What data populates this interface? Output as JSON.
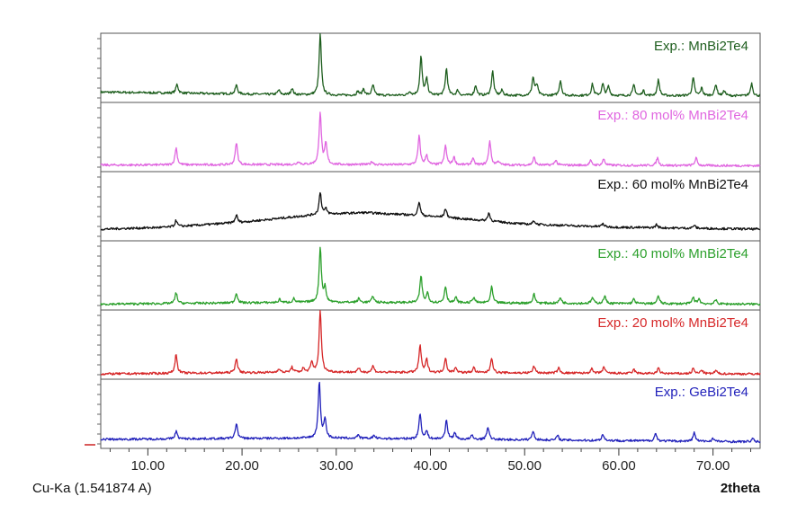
{
  "chart_data": {
    "type": "line",
    "xlabel": "2theta",
    "source_label": "Cu-Ka (1.541874 A)",
    "xlim": [
      5,
      75
    ],
    "x_ticks": [
      "10.00",
      "20.00",
      "30.00",
      "40.00",
      "50.00",
      "60.00",
      "70.00"
    ],
    "x_tick_values": [
      10,
      20,
      30,
      40,
      50,
      60,
      70
    ],
    "grid": false,
    "legend_placement": "top-right of each panel",
    "series": [
      {
        "name": "Exp.: MnBi2Te4",
        "color": "#1e5e1e",
        "baseline": [
          [
            5,
            0.12
          ],
          [
            30,
            0.07
          ],
          [
            75,
            0.06
          ]
        ],
        "peaks": [
          [
            13.1,
            0.14
          ],
          [
            19.4,
            0.14
          ],
          [
            23.9,
            0.07
          ],
          [
            25.3,
            0.1
          ],
          [
            28.3,
            0.95
          ],
          [
            32.3,
            0.06
          ],
          [
            32.9,
            0.1
          ],
          [
            33.9,
            0.16
          ],
          [
            37.8,
            0.06
          ],
          [
            39.0,
            0.6
          ],
          [
            39.6,
            0.25
          ],
          [
            41.7,
            0.42
          ],
          [
            42.9,
            0.08
          ],
          [
            44.8,
            0.16
          ],
          [
            46.6,
            0.38
          ],
          [
            47.6,
            0.08
          ],
          [
            50.9,
            0.28
          ],
          [
            51.3,
            0.16
          ],
          [
            53.8,
            0.24
          ],
          [
            57.2,
            0.18
          ],
          [
            58.3,
            0.18
          ],
          [
            58.9,
            0.14
          ],
          [
            61.6,
            0.17
          ],
          [
            62.6,
            0.08
          ],
          [
            64.2,
            0.25
          ],
          [
            67.9,
            0.28
          ],
          [
            68.8,
            0.12
          ],
          [
            70.3,
            0.18
          ],
          [
            71.2,
            0.08
          ],
          [
            74.1,
            0.2
          ]
        ]
      },
      {
        "name": "Exp.: 80 mol% MnBi2Te4",
        "color": "#e066e0",
        "baseline": [
          [
            5,
            0.06
          ],
          [
            28,
            0.07
          ],
          [
            75,
            0.05
          ]
        ],
        "peaks": [
          [
            13.0,
            0.27
          ],
          [
            19.4,
            0.35
          ],
          [
            26.0,
            0.05
          ],
          [
            28.3,
            0.82
          ],
          [
            28.9,
            0.32
          ],
          [
            33.8,
            0.05
          ],
          [
            38.8,
            0.45
          ],
          [
            39.6,
            0.15
          ],
          [
            41.6,
            0.3
          ],
          [
            42.5,
            0.12
          ],
          [
            44.5,
            0.1
          ],
          [
            46.3,
            0.38
          ],
          [
            47.2,
            0.06
          ],
          [
            51.0,
            0.12
          ],
          [
            53.3,
            0.08
          ],
          [
            57.0,
            0.07
          ],
          [
            58.4,
            0.1
          ],
          [
            64.1,
            0.12
          ],
          [
            68.2,
            0.12
          ]
        ]
      },
      {
        "name": "Exp.: 60 mol% MnBi2Te4",
        "color": "#111111",
        "baseline": [
          [
            5,
            0.14
          ],
          [
            12,
            0.17
          ],
          [
            20,
            0.25
          ],
          [
            28,
            0.37
          ],
          [
            33,
            0.4
          ],
          [
            37,
            0.37
          ],
          [
            42,
            0.32
          ],
          [
            50,
            0.22
          ],
          [
            60,
            0.17
          ],
          [
            75,
            0.14
          ]
        ],
        "peaks": [
          [
            13.0,
            0.1
          ],
          [
            19.4,
            0.12
          ],
          [
            28.3,
            0.35
          ],
          [
            28.9,
            0.08
          ],
          [
            38.8,
            0.22
          ],
          [
            41.6,
            0.14
          ],
          [
            46.2,
            0.13
          ],
          [
            51.0,
            0.06
          ],
          [
            58.3,
            0.05
          ],
          [
            64.0,
            0.05
          ],
          [
            68.0,
            0.05
          ]
        ]
      },
      {
        "name": "Exp.: 40 mol% MnBi2Te4",
        "color": "#2ca02c",
        "baseline": [
          [
            5,
            0.05
          ],
          [
            28,
            0.08
          ],
          [
            75,
            0.05
          ]
        ],
        "peaks": [
          [
            13.0,
            0.17
          ],
          [
            19.4,
            0.16
          ],
          [
            24.0,
            0.05
          ],
          [
            25.5,
            0.06
          ],
          [
            28.3,
            0.86
          ],
          [
            28.8,
            0.22
          ],
          [
            32.4,
            0.06
          ],
          [
            33.9,
            0.1
          ],
          [
            39.0,
            0.42
          ],
          [
            39.7,
            0.15
          ],
          [
            41.6,
            0.26
          ],
          [
            42.7,
            0.08
          ],
          [
            44.6,
            0.09
          ],
          [
            46.5,
            0.25
          ],
          [
            51.0,
            0.14
          ],
          [
            53.8,
            0.09
          ],
          [
            57.2,
            0.09
          ],
          [
            58.5,
            0.12
          ],
          [
            61.6,
            0.07
          ],
          [
            64.2,
            0.12
          ],
          [
            67.9,
            0.1
          ],
          [
            68.5,
            0.08
          ],
          [
            70.3,
            0.06
          ]
        ]
      },
      {
        "name": "Exp.: 20 mol% MnBi2Te4",
        "color": "#d62728",
        "baseline": [
          [
            5,
            0.04
          ],
          [
            28,
            0.07
          ],
          [
            75,
            0.04
          ]
        ],
        "peaks": [
          [
            13.0,
            0.3
          ],
          [
            19.4,
            0.23
          ],
          [
            23.9,
            0.06
          ],
          [
            25.3,
            0.08
          ],
          [
            26.5,
            0.06
          ],
          [
            27.4,
            0.15
          ],
          [
            28.3,
            0.97
          ],
          [
            32.4,
            0.06
          ],
          [
            33.9,
            0.1
          ],
          [
            38.9,
            0.43
          ],
          [
            39.6,
            0.2
          ],
          [
            41.6,
            0.23
          ],
          [
            42.7,
            0.08
          ],
          [
            44.6,
            0.08
          ],
          [
            46.5,
            0.24
          ],
          [
            51.0,
            0.11
          ],
          [
            53.6,
            0.08
          ],
          [
            57.1,
            0.07
          ],
          [
            58.4,
            0.1
          ],
          [
            61.6,
            0.06
          ],
          [
            64.2,
            0.08
          ],
          [
            67.9,
            0.08
          ],
          [
            68.8,
            0.06
          ],
          [
            70.3,
            0.05
          ]
        ]
      },
      {
        "name": "Exp.: GeBi2Te4",
        "color": "#2222bb",
        "baseline": [
          [
            5,
            0.1
          ],
          [
            28,
            0.12
          ],
          [
            75,
            0.06
          ]
        ],
        "peaks": [
          [
            13.0,
            0.12
          ],
          [
            19.4,
            0.24
          ],
          [
            28.2,
            0.88
          ],
          [
            28.8,
            0.3
          ],
          [
            32.3,
            0.05
          ],
          [
            34.0,
            0.05
          ],
          [
            38.9,
            0.4
          ],
          [
            39.6,
            0.12
          ],
          [
            41.7,
            0.3
          ],
          [
            42.6,
            0.1
          ],
          [
            44.4,
            0.06
          ],
          [
            46.1,
            0.2
          ],
          [
            50.9,
            0.14
          ],
          [
            53.5,
            0.07
          ],
          [
            58.3,
            0.1
          ],
          [
            63.9,
            0.12
          ],
          [
            68.0,
            0.14
          ],
          [
            70.0,
            0.05
          ],
          [
            74.2,
            0.05
          ]
        ]
      }
    ]
  }
}
